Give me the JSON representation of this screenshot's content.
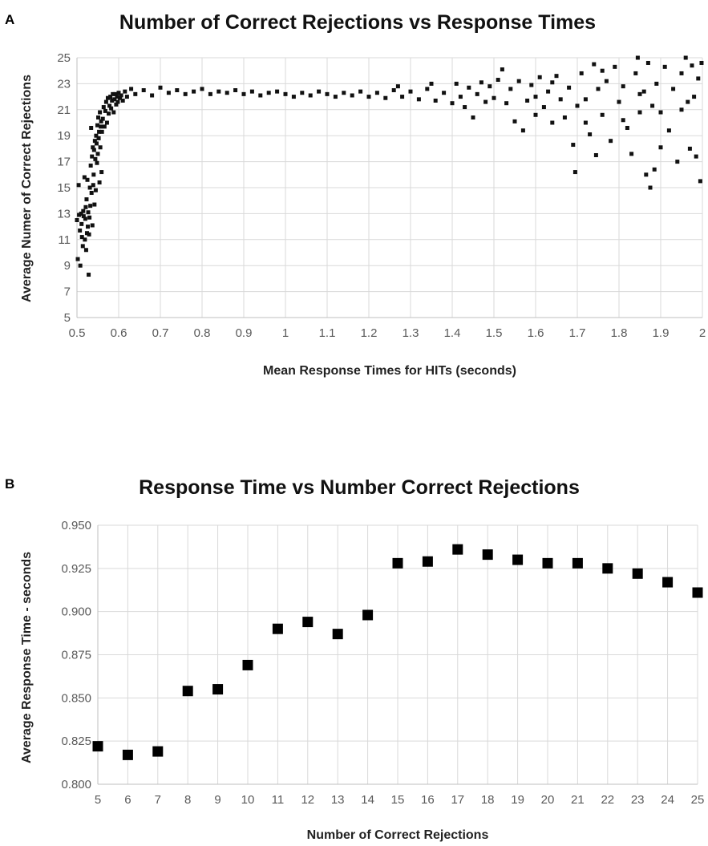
{
  "chart_data": [
    {
      "panel_label": "A",
      "type": "scatter",
      "title": "Number of Correct Rejections vs Response Times",
      "xlabel": "Mean Response Times for HITs  (seconds)",
      "ylabel": "Average Numer of Correct Rejections",
      "xlim": [
        0.5,
        2
      ],
      "ylim": [
        5,
        25
      ],
      "xticks": [
        "0.5",
        "0.6",
        "0.7",
        "0.8",
        "0.9",
        "1",
        "1.1",
        "1.2",
        "1.3",
        "1.4",
        "1.5",
        "1.6",
        "1.7",
        "1.8",
        "1.9",
        "2"
      ],
      "yticks": [
        "5",
        "7",
        "9",
        "11",
        "13",
        "15",
        "17",
        "19",
        "21",
        "23",
        "25"
      ],
      "grid": true,
      "legend": "none",
      "marker": "square",
      "color": "#111111",
      "points": [
        [
          0.5,
          12.5
        ],
        [
          0.502,
          9.5
        ],
        [
          0.504,
          15.2
        ],
        [
          0.505,
          12.9
        ],
        [
          0.507,
          11.7
        ],
        [
          0.508,
          9.0
        ],
        [
          0.51,
          13.0
        ],
        [
          0.511,
          12.2
        ],
        [
          0.512,
          11.2
        ],
        [
          0.514,
          10.5
        ],
        [
          0.515,
          13.2
        ],
        [
          0.516,
          12.8
        ],
        [
          0.518,
          15.8
        ],
        [
          0.519,
          11.0
        ],
        [
          0.52,
          12.6
        ],
        [
          0.521,
          13.5
        ],
        [
          0.522,
          10.2
        ],
        [
          0.523,
          14.1
        ],
        [
          0.524,
          11.5
        ],
        [
          0.525,
          15.6
        ],
        [
          0.526,
          12.0
        ],
        [
          0.527,
          13.1
        ],
        [
          0.528,
          8.3
        ],
        [
          0.529,
          11.4
        ],
        [
          0.53,
          12.7
        ],
        [
          0.531,
          15.0
        ],
        [
          0.532,
          13.6
        ],
        [
          0.533,
          16.7
        ],
        [
          0.534,
          19.6
        ],
        [
          0.535,
          14.6
        ],
        [
          0.536,
          17.4
        ],
        [
          0.537,
          12.1
        ],
        [
          0.538,
          18.1
        ],
        [
          0.539,
          15.2
        ],
        [
          0.54,
          16.0
        ],
        [
          0.541,
          17.9
        ],
        [
          0.542,
          13.7
        ],
        [
          0.543,
          18.6
        ],
        [
          0.544,
          17.2
        ],
        [
          0.545,
          14.8
        ],
        [
          0.546,
          19.0
        ],
        [
          0.547,
          18.4
        ],
        [
          0.548,
          16.9
        ],
        [
          0.549,
          19.8
        ],
        [
          0.55,
          17.6
        ],
        [
          0.551,
          20.4
        ],
        [
          0.552,
          18.8
        ],
        [
          0.553,
          19.3
        ],
        [
          0.554,
          15.4
        ],
        [
          0.555,
          20.8
        ],
        [
          0.556,
          18.1
        ],
        [
          0.557,
          19.7
        ],
        [
          0.558,
          20.1
        ],
        [
          0.559,
          16.2
        ],
        [
          0.56,
          19.3
        ],
        [
          0.562,
          20.3
        ],
        [
          0.564,
          21.2
        ],
        [
          0.566,
          19.7
        ],
        [
          0.568,
          20.9
        ],
        [
          0.57,
          21.6
        ],
        [
          0.572,
          20.0
        ],
        [
          0.574,
          21.9
        ],
        [
          0.576,
          20.7
        ],
        [
          0.578,
          21.3
        ],
        [
          0.58,
          22.0
        ],
        [
          0.582,
          21.1
        ],
        [
          0.584,
          21.7
        ],
        [
          0.586,
          22.2
        ],
        [
          0.588,
          20.8
        ],
        [
          0.59,
          21.8
        ],
        [
          0.592,
          22.2
        ],
        [
          0.594,
          21.4
        ],
        [
          0.596,
          22.0
        ],
        [
          0.598,
          21.6
        ],
        [
          0.6,
          22.3
        ],
        [
          0.603,
          21.9
        ],
        [
          0.606,
          22.1
        ],
        [
          0.61,
          21.7
        ],
        [
          0.615,
          22.4
        ],
        [
          0.62,
          22.0
        ],
        [
          0.63,
          22.6
        ],
        [
          0.64,
          22.2
        ],
        [
          0.66,
          22.5
        ],
        [
          0.68,
          22.1
        ],
        [
          0.7,
          22.7
        ],
        [
          0.72,
          22.3
        ],
        [
          0.74,
          22.5
        ],
        [
          0.76,
          22.2
        ],
        [
          0.78,
          22.4
        ],
        [
          0.8,
          22.6
        ],
        [
          0.82,
          22.2
        ],
        [
          0.84,
          22.4
        ],
        [
          0.86,
          22.3
        ],
        [
          0.88,
          22.5
        ],
        [
          0.9,
          22.2
        ],
        [
          0.92,
          22.4
        ],
        [
          0.94,
          22.1
        ],
        [
          0.96,
          22.3
        ],
        [
          0.98,
          22.4
        ],
        [
          1.0,
          22.2
        ],
        [
          1.02,
          22.0
        ],
        [
          1.04,
          22.3
        ],
        [
          1.06,
          22.1
        ],
        [
          1.08,
          22.4
        ],
        [
          1.1,
          22.2
        ],
        [
          1.12,
          22.0
        ],
        [
          1.14,
          22.3
        ],
        [
          1.16,
          22.1
        ],
        [
          1.18,
          22.4
        ],
        [
          1.2,
          22.0
        ],
        [
          1.22,
          22.3
        ],
        [
          1.24,
          21.9
        ],
        [
          1.26,
          22.5
        ],
        [
          1.27,
          22.8
        ],
        [
          1.28,
          22.0
        ],
        [
          1.3,
          22.4
        ],
        [
          1.32,
          21.8
        ],
        [
          1.34,
          22.6
        ],
        [
          1.35,
          23.0
        ],
        [
          1.36,
          21.7
        ],
        [
          1.38,
          22.3
        ],
        [
          1.4,
          21.5
        ],
        [
          1.41,
          23.0
        ],
        [
          1.42,
          22.0
        ],
        [
          1.43,
          21.2
        ],
        [
          1.44,
          22.7
        ],
        [
          1.45,
          20.4
        ],
        [
          1.46,
          22.2
        ],
        [
          1.47,
          23.1
        ],
        [
          1.48,
          21.6
        ],
        [
          1.49,
          22.8
        ],
        [
          1.5,
          21.9
        ],
        [
          1.51,
          23.3
        ],
        [
          1.52,
          24.1
        ],
        [
          1.53,
          21.5
        ],
        [
          1.54,
          22.6
        ],
        [
          1.55,
          20.1
        ],
        [
          1.56,
          23.2
        ],
        [
          1.57,
          19.4
        ],
        [
          1.58,
          21.7
        ],
        [
          1.59,
          22.9
        ],
        [
          1.6,
          20.6
        ],
        [
          1.61,
          23.5
        ],
        [
          1.62,
          21.2
        ],
        [
          1.63,
          22.4
        ],
        [
          1.64,
          20.0
        ],
        [
          1.65,
          23.6
        ],
        [
          1.66,
          21.8
        ],
        [
          1.67,
          20.4
        ],
        [
          1.68,
          22.7
        ],
        [
          1.69,
          18.3
        ],
        [
          1.695,
          16.2
        ],
        [
          1.7,
          21.3
        ],
        [
          1.71,
          23.8
        ],
        [
          1.72,
          20.0
        ],
        [
          1.73,
          19.1
        ],
        [
          1.74,
          24.5
        ],
        [
          1.745,
          17.5
        ],
        [
          1.75,
          22.6
        ],
        [
          1.76,
          20.6
        ],
        [
          1.77,
          23.2
        ],
        [
          1.78,
          18.6
        ],
        [
          1.79,
          24.3
        ],
        [
          1.8,
          21.6
        ],
        [
          1.81,
          22.8
        ],
        [
          1.82,
          19.6
        ],
        [
          1.83,
          17.6
        ],
        [
          1.84,
          23.8
        ],
        [
          1.845,
          25.0
        ],
        [
          1.85,
          20.8
        ],
        [
          1.86,
          22.4
        ],
        [
          1.865,
          16.0
        ],
        [
          1.87,
          24.6
        ],
        [
          1.875,
          15.0
        ],
        [
          1.88,
          21.3
        ],
        [
          1.885,
          16.4
        ],
        [
          1.89,
          23.0
        ],
        [
          1.9,
          18.1
        ],
        [
          1.91,
          24.3
        ],
        [
          1.92,
          19.4
        ],
        [
          1.93,
          22.6
        ],
        [
          1.94,
          17.0
        ],
        [
          1.95,
          23.8
        ],
        [
          1.96,
          25.0
        ],
        [
          1.965,
          21.6
        ],
        [
          1.97,
          18.0
        ],
        [
          1.975,
          24.4
        ],
        [
          1.98,
          22.0
        ],
        [
          1.985,
          17.4
        ],
        [
          1.99,
          23.4
        ],
        [
          1.995,
          15.5
        ],
        [
          1.998,
          24.6
        ],
        [
          1.64,
          23.1
        ],
        [
          1.76,
          24.0
        ],
        [
          1.72,
          21.8
        ],
        [
          1.81,
          20.2
        ],
        [
          1.9,
          20.8
        ],
        [
          1.95,
          21.0
        ],
        [
          1.85,
          22.2
        ],
        [
          1.6,
          22.0
        ]
      ]
    },
    {
      "panel_label": "B",
      "type": "scatter",
      "title": "Response Time vs Number Correct Rejections",
      "xlabel": "Number of Correct Rejections",
      "ylabel": "Average Response Time - seconds",
      "xlim": [
        5,
        25
      ],
      "ylim": [
        0.8,
        0.95
      ],
      "xticks": [
        "5",
        "6",
        "7",
        "8",
        "9",
        "10",
        "11",
        "12",
        "13",
        "14",
        "15",
        "16",
        "17",
        "18",
        "19",
        "20",
        "21",
        "22",
        "23",
        "24",
        "25"
      ],
      "yticks": [
        "0.800",
        "0.825",
        "0.850",
        "0.875",
        "0.900",
        "0.925",
        "0.950"
      ],
      "grid": true,
      "legend": "none",
      "marker": "square",
      "color": "#000000",
      "x": [
        5,
        6,
        7,
        8,
        9,
        10,
        11,
        12,
        13,
        14,
        15,
        16,
        17,
        18,
        19,
        20,
        21,
        22,
        23,
        24,
        25
      ],
      "y": [
        0.822,
        0.817,
        0.819,
        0.854,
        0.855,
        0.869,
        0.89,
        0.894,
        0.887,
        0.898,
        0.928,
        0.929,
        0.936,
        0.933,
        0.93,
        0.928,
        0.928,
        0.925,
        0.922,
        0.917,
        0.911
      ]
    }
  ]
}
